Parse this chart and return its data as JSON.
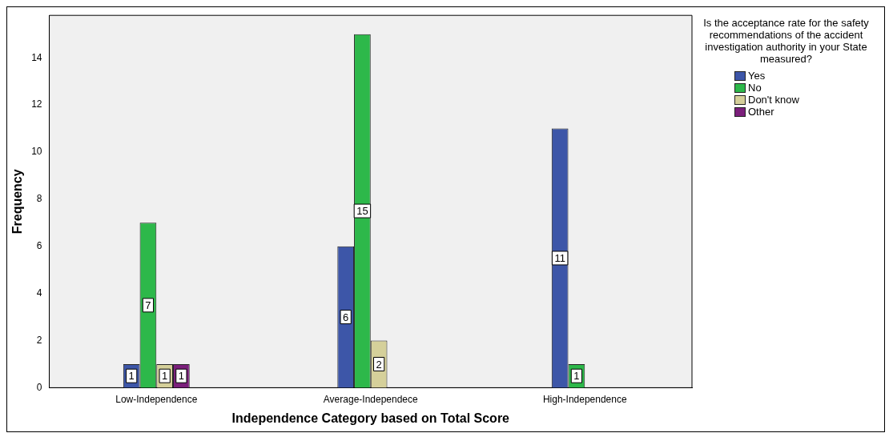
{
  "chart_data": {
    "type": "bar",
    "xlabel": "Independence Category based on Total Score",
    "ylabel": "Frequency",
    "legend_title": "Is the acceptance rate for the safety recommendations of the accident investigation authority in your State measured?",
    "categories": [
      "Low-Independence",
      "Average-Independece",
      "High-Independence"
    ],
    "series": [
      {
        "name": "Yes",
        "color": "#3d56a8",
        "values": [
          1,
          6,
          11
        ]
      },
      {
        "name": "No",
        "color": "#2db84a",
        "values": [
          7,
          15,
          1
        ]
      },
      {
        "name": "Don't know",
        "color": "#d5d09a",
        "values": [
          1,
          2,
          null
        ]
      },
      {
        "name": "Other",
        "color": "#7b1f7b",
        "values": [
          1,
          null,
          null
        ]
      }
    ],
    "ylim": [
      0,
      15.8
    ],
    "yticks": [
      0,
      2,
      4,
      6,
      8,
      10,
      12,
      14
    ],
    "grid": false,
    "legend": "right",
    "data_labels": true
  }
}
